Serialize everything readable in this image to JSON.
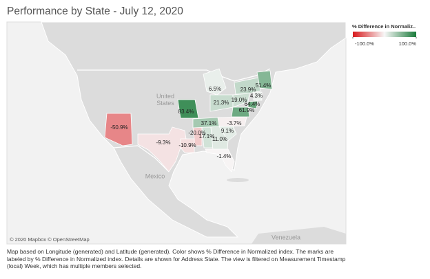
{
  "header": {
    "title": "Performance by State - July 12, 2020"
  },
  "legend": {
    "title": "% Difference in Normaliz..",
    "ticks": [
      {
        "value": -100,
        "label": "-100.0%"
      },
      {
        "value": 100,
        "label": "100.0%"
      }
    ],
    "low_color": "#d7191c",
    "mid_color": "#f7f7f7",
    "high_color": "#1a7a3a"
  },
  "map": {
    "places": [
      "United States",
      "Mexico",
      "Venezuela"
    ],
    "values": [
      -50.9,
      -9.3,
      -10.9,
      -20.0,
      17.1,
      11.0,
      -1.4,
      9.1,
      -3.7,
      37.1,
      83.4,
      21.3,
      6.5,
      19.0,
      23.9,
      51.4,
      4.3,
      64.4,
      61.9
    ],
    "value_labels": [
      "-50.9%",
      "-9.3%",
      "-10.9%",
      "-20.0%",
      "17.1%",
      "11.0%",
      "-1.4%",
      "9.1%",
      "-3.7%",
      "37.1%",
      "83.4%",
      "21.3%",
      "6.5%",
      "19.0%",
      "23.9%",
      "51.4%",
      "4.3%",
      "64.4%",
      "61.9%"
    ],
    "attribution": "© 2020 Mapbox © OpenStreetMap"
  },
  "caption": "Map based on Longitude (generated) and Latitude (generated).  Color shows % Difference in Normalized index.  The marks are labeled by % Difference in Normalized index.  Details are shown for Address State. The view is filtered on Measurement Timestamp (local) Week, which has multiple members selected."
}
